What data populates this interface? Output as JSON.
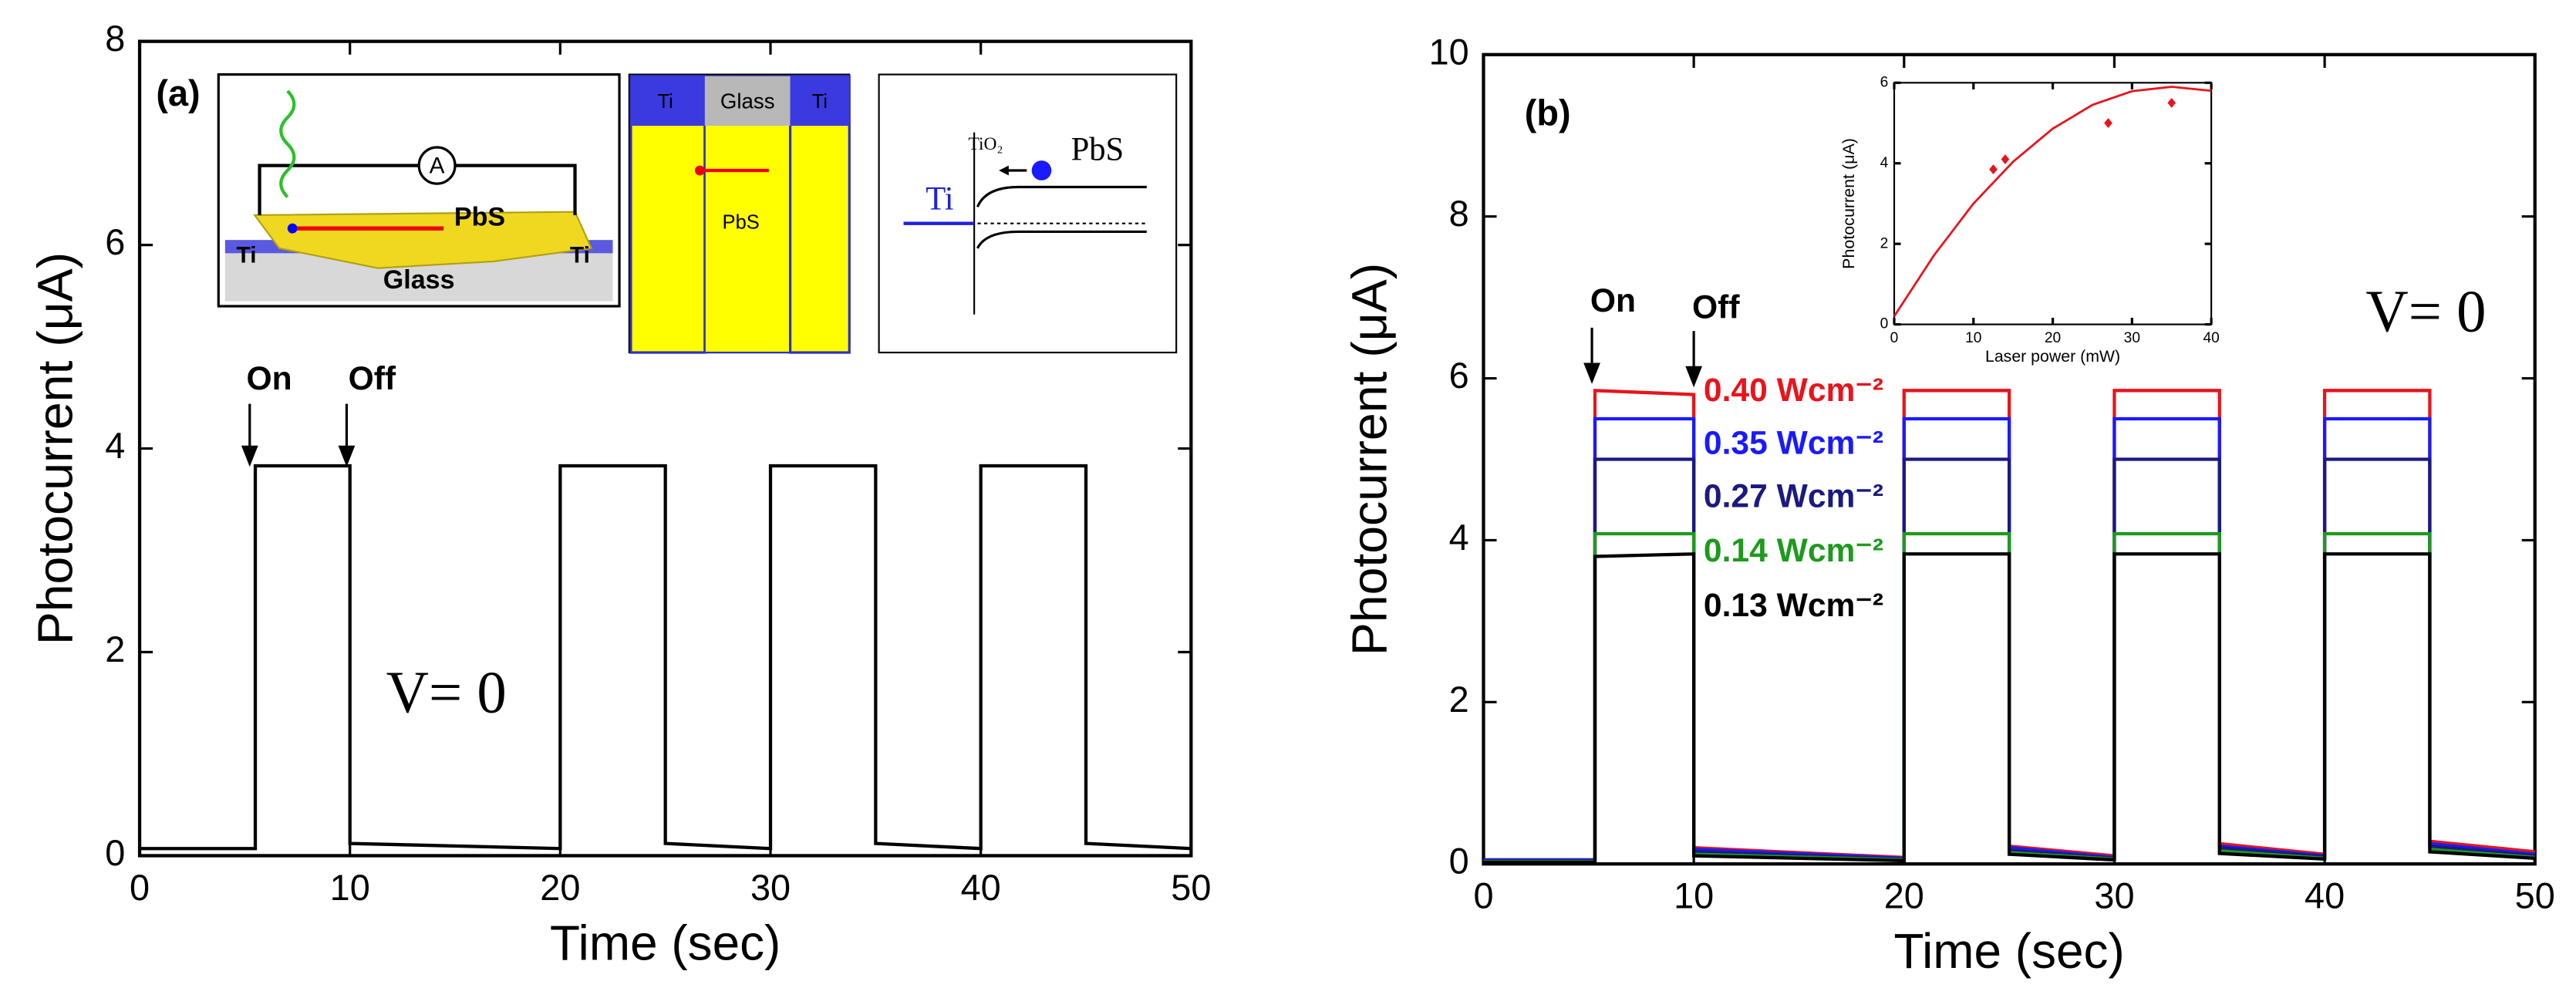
{
  "chart_data": [
    {
      "type": "line",
      "xlabel": "Time (sec)",
      "ylabel": "Photocurrent (μA)",
      "xlim": [
        0,
        50
      ],
      "ylim": [
        0,
        8
      ],
      "xticks": [
        0,
        10,
        20,
        30,
        40,
        50
      ],
      "yticks": [
        0,
        2,
        4,
        6,
        8
      ],
      "x": [
        0,
        5.5,
        5.5,
        10,
        10,
        20,
        20,
        25,
        25,
        30,
        30,
        35,
        35,
        40,
        40,
        45,
        45,
        50
      ],
      "series": [
        {
          "color": "#000000",
          "values": [
            0.07,
            0.07,
            3.83,
            3.83,
            0.12,
            0.07,
            3.83,
            3.83,
            0.12,
            0.07,
            3.83,
            3.83,
            0.12,
            0.07,
            3.83,
            3.83,
            0.12,
            0.07
          ]
        }
      ],
      "annotations": [
        "(a)",
        "On",
        "Off",
        "V= 0"
      ],
      "inset_labels": [
        "A",
        "PbS",
        "Ti",
        "Ti",
        "Glass",
        "Ti",
        "Glass",
        "Ti",
        "PbS",
        "TiO₂",
        "PbS",
        "Ti"
      ]
    },
    {
      "type": "line",
      "xlabel": "Time (sec)",
      "ylabel": "Photocurrent (μA)",
      "xlim": [
        0,
        50
      ],
      "ylim": [
        0,
        10
      ],
      "xticks": [
        0,
        10,
        20,
        30,
        40,
        50
      ],
      "yticks": [
        0,
        2,
        4,
        6,
        8,
        10
      ],
      "x": [
        0,
        5.3,
        5.3,
        10,
        10,
        20,
        20,
        25,
        25,
        30,
        30,
        35,
        35,
        40,
        40,
        45,
        45,
        50
      ],
      "series": [
        {
          "name": "0.40 Wcm⁻²",
          "color": "#e8141c",
          "values": [
            0.05,
            0.05,
            5.85,
            5.8,
            0.2,
            0.08,
            5.85,
            5.85,
            0.22,
            0.1,
            5.85,
            5.85,
            0.25,
            0.12,
            5.85,
            5.85,
            0.28,
            0.15
          ]
        },
        {
          "name": "0.35 Wcm⁻²",
          "color": "#1a1aff",
          "values": [
            0.05,
            0.05,
            5.5,
            5.5,
            0.18,
            0.07,
            5.5,
            5.5,
            0.2,
            0.08,
            5.5,
            5.5,
            0.22,
            0.1,
            5.5,
            5.5,
            0.25,
            0.12
          ]
        },
        {
          "name": "0.27 Wcm⁻²",
          "color": "#1a1a80",
          "values": [
            0.04,
            0.04,
            5.0,
            5.0,
            0.15,
            0.06,
            5.0,
            5.0,
            0.17,
            0.07,
            5.0,
            5.0,
            0.2,
            0.09,
            5.0,
            5.0,
            0.22,
            0.1
          ]
        },
        {
          "name": "0.14 Wcm⁻²",
          "color": "#1e9a1e",
          "values": [
            0.03,
            0.03,
            4.08,
            4.08,
            0.12,
            0.05,
            4.08,
            4.08,
            0.14,
            0.06,
            4.08,
            4.08,
            0.16,
            0.07,
            4.08,
            4.08,
            0.18,
            0.08
          ]
        },
        {
          "name": "0.13 Wcm⁻²",
          "color": "#000000",
          "values": [
            0.02,
            0.02,
            3.8,
            3.83,
            0.1,
            0.04,
            3.83,
            3.83,
            0.12,
            0.05,
            3.83,
            3.83,
            0.13,
            0.06,
            3.83,
            3.83,
            0.15,
            0.07
          ]
        }
      ],
      "annotations": [
        "(b)",
        "On",
        "Off",
        "V= 0"
      ]
    },
    {
      "type": "scatter",
      "xlabel": "Laser power (mW)",
      "ylabel": "Photocurrent (μA)",
      "xlim": [
        0,
        40
      ],
      "ylim": [
        0,
        6
      ],
      "xticks": [
        0,
        10,
        20,
        30,
        40
      ],
      "yticks": [
        0,
        2,
        4,
        6
      ],
      "series": [
        {
          "color": "#e8141c",
          "mode": "markers",
          "x": [
            12.5,
            14,
            27,
            35
          ],
          "values": [
            3.85,
            4.1,
            5.0,
            5.5
          ]
        },
        {
          "color": "#e8141c",
          "mode": "line",
          "x": [
            0,
            5,
            10,
            15,
            20,
            25,
            30,
            35,
            40
          ],
          "values": [
            0.2,
            1.71,
            3.0,
            4.04,
            4.86,
            5.45,
            5.79,
            5.9,
            5.8
          ]
        }
      ]
    }
  ]
}
